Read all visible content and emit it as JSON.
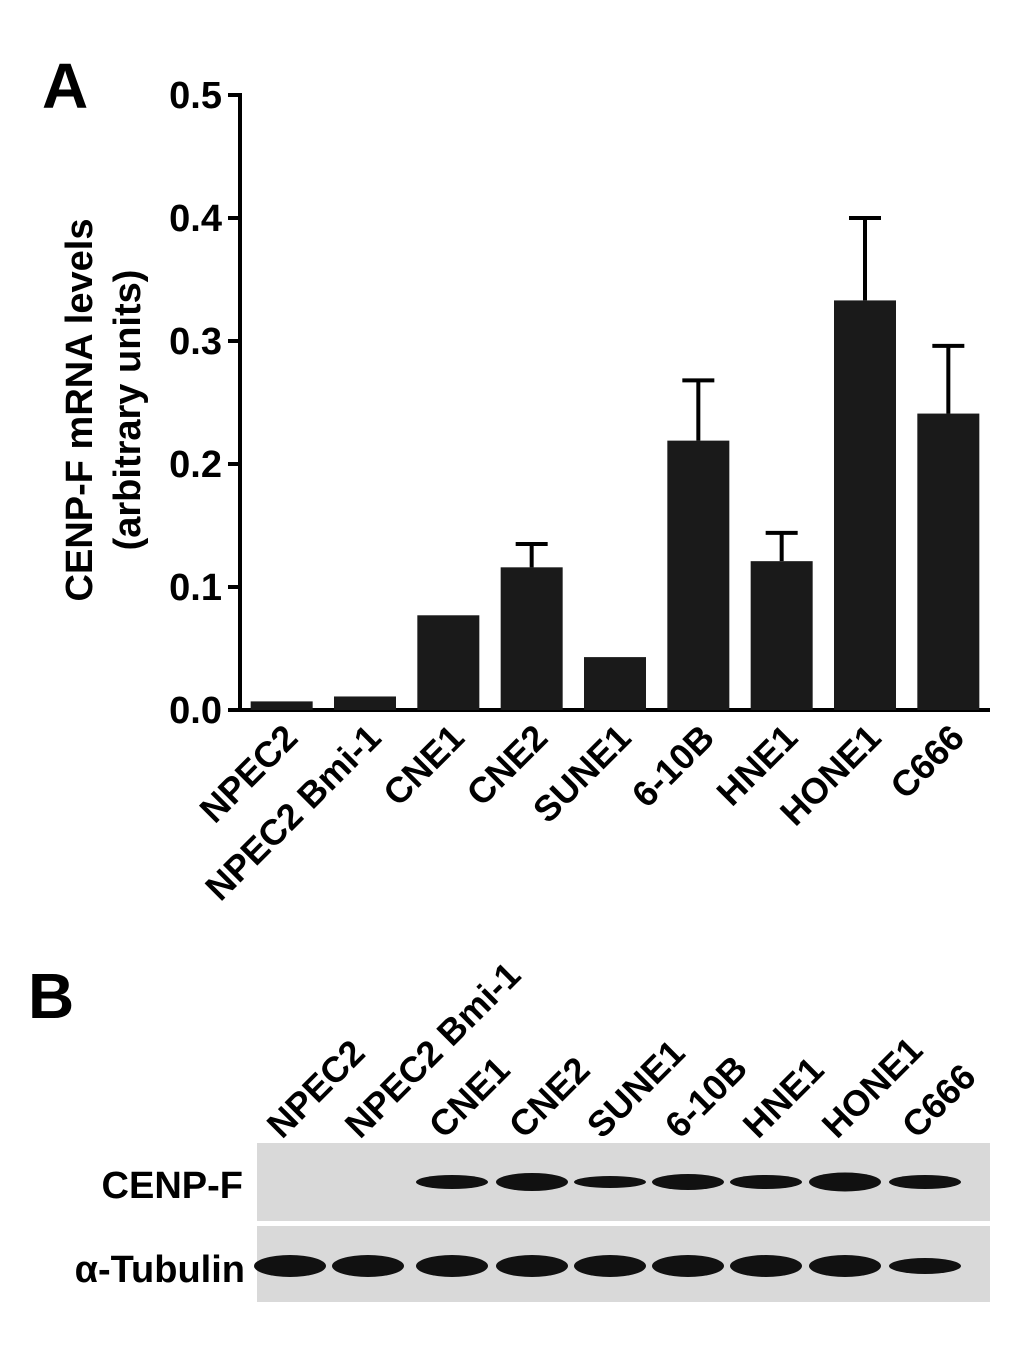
{
  "chart_data": {
    "type": "bar",
    "panel_label": "A",
    "y_label": [
      "CENP-F mRNA levels",
      "(arbitrary units)"
    ],
    "categories": [
      "NPEC2",
      "NPEC2 Bmi-1",
      "CNE1",
      "CNE2",
      "SUNE1",
      "6-10B",
      "HNE1",
      "HONE1",
      "C666"
    ],
    "values": [
      0.007,
      0.011,
      0.077,
      0.116,
      0.043,
      0.219,
      0.121,
      0.333,
      0.241
    ],
    "errors": [
      null,
      null,
      null,
      0.019,
      null,
      0.049,
      0.023,
      0.067,
      0.055
    ],
    "color": "#1a1a1a",
    "ylim": [
      0,
      0.5
    ],
    "yticks": [
      {
        "value": 0,
        "label": "0.0"
      },
      0.1,
      0.2,
      0.3,
      0.4,
      0.5
    ]
  },
  "blot": {
    "panel_label": "B",
    "lanes": [
      "NPEC2",
      "NPEC2 Bmi-1",
      "CNE1",
      "CNE2",
      "SUNE1",
      "6-10B",
      "HNE1",
      "HONE1",
      "C666"
    ],
    "rows": [
      "CENP-F",
      "α-Tubulin"
    ]
  }
}
